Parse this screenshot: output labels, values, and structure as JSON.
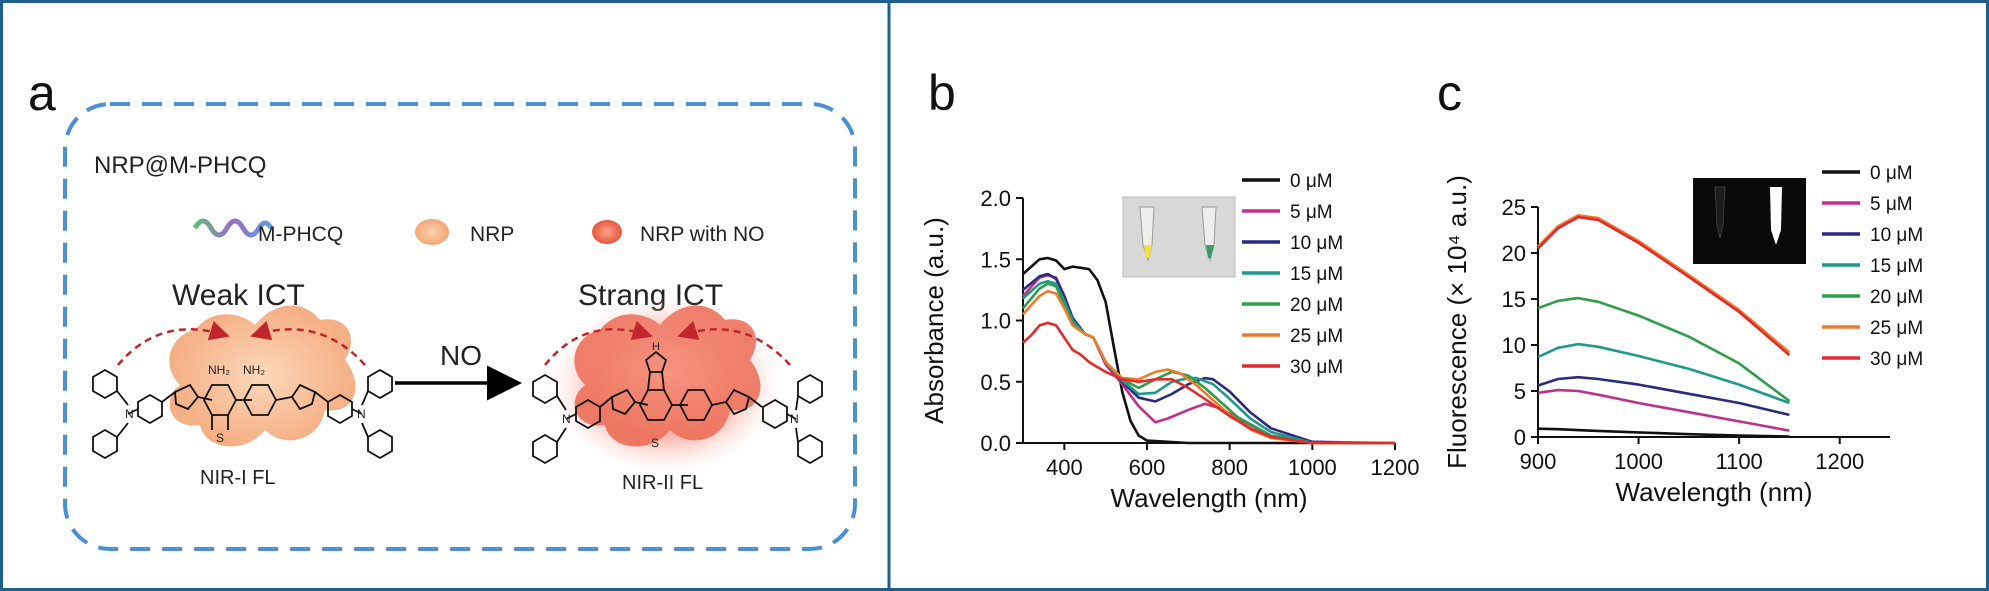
{
  "panel_a": {
    "letter": "a",
    "title": "NRP@M-PHCQ",
    "legend": {
      "mphcq": "M-PHCQ",
      "nrp": "NRP",
      "nrp_no": "NRP with NO"
    },
    "left_label": "Weak ICT",
    "right_label": "Strang ICT",
    "arrow_label": "NO",
    "left_caption": "NIR-I FL",
    "right_caption": "NIR-II FL",
    "atoms": {
      "nh2": "NH₂",
      "n": "N",
      "s": "S",
      "nh": "H"
    }
  },
  "panel_b": {
    "letter": "b"
  },
  "panel_c": {
    "letter": "c"
  },
  "colors": {
    "border": "#1f5f8b",
    "dashed": "#4a90d2",
    "s0": "#111111",
    "s5": "#c0308a",
    "s10": "#2b2a83",
    "s15": "#1f9a8a",
    "s20": "#2e9e49",
    "s25": "#f07b2b",
    "s30": "#e22b2b"
  },
  "chart_data": [
    {
      "type": "line",
      "xlabel": "Wavelength (nm)",
      "ylabel": "Absorbance (a.u.)",
      "xlim": [
        300,
        1200
      ],
      "ylim": [
        0,
        2.0
      ],
      "xticks": [
        "400",
        "600",
        "800",
        "1000",
        "1200"
      ],
      "yticks": [
        "0.0",
        "0.5",
        "1.0",
        "1.5",
        "2.0"
      ],
      "legend_position": "top-right",
      "series": [
        {
          "name": "0 μM",
          "x": [
            300,
            340,
            360,
            380,
            400,
            420,
            440,
            460,
            480,
            500,
            520,
            540,
            560,
            580,
            600,
            650,
            700,
            800,
            1000,
            1200
          ],
          "y": [
            1.38,
            1.5,
            1.51,
            1.49,
            1.42,
            1.44,
            1.43,
            1.42,
            1.33,
            1.15,
            0.78,
            0.42,
            0.18,
            0.06,
            0.02,
            0.01,
            0.0,
            0.0,
            0.0,
            0.0
          ]
        },
        {
          "name": "5 μM",
          "x": [
            300,
            340,
            360,
            380,
            400,
            420,
            450,
            470,
            500,
            540,
            580,
            620,
            650,
            700,
            740,
            780,
            820,
            900,
            1000,
            1200
          ],
          "y": [
            1.2,
            1.35,
            1.37,
            1.35,
            1.2,
            1.02,
            0.89,
            0.86,
            0.64,
            0.48,
            0.3,
            0.17,
            0.2,
            0.27,
            0.32,
            0.28,
            0.2,
            0.06,
            0.01,
            0.0
          ]
        },
        {
          "name": "10 μM",
          "x": [
            300,
            340,
            360,
            380,
            400,
            420,
            450,
            470,
            500,
            540,
            580,
            620,
            660,
            700,
            740,
            760,
            800,
            850,
            900,
            1000,
            1100,
            1200
          ],
          "y": [
            1.25,
            1.36,
            1.38,
            1.34,
            1.2,
            1.02,
            0.89,
            0.86,
            0.66,
            0.5,
            0.37,
            0.34,
            0.4,
            0.48,
            0.53,
            0.52,
            0.42,
            0.25,
            0.12,
            0.01,
            0.0,
            0.0
          ]
        },
        {
          "name": "15 μM",
          "x": [
            300,
            340,
            360,
            380,
            400,
            420,
            450,
            470,
            500,
            540,
            580,
            620,
            660,
            700,
            720,
            760,
            800,
            850,
            900,
            1000,
            1200
          ],
          "y": [
            1.18,
            1.3,
            1.32,
            1.3,
            1.16,
            1.0,
            0.89,
            0.86,
            0.66,
            0.51,
            0.4,
            0.41,
            0.5,
            0.53,
            0.53,
            0.48,
            0.36,
            0.2,
            0.09,
            0.0,
            0.0
          ]
        },
        {
          "name": "20 μM",
          "x": [
            300,
            340,
            360,
            380,
            400,
            420,
            450,
            470,
            500,
            540,
            580,
            620,
            660,
            700,
            740,
            780,
            820,
            900,
            1000,
            1200
          ],
          "y": [
            1.1,
            1.26,
            1.3,
            1.28,
            1.12,
            0.97,
            0.89,
            0.86,
            0.66,
            0.52,
            0.45,
            0.52,
            0.58,
            0.55,
            0.45,
            0.33,
            0.21,
            0.06,
            0.0,
            0.0
          ]
        },
        {
          "name": "25 μM",
          "x": [
            300,
            340,
            360,
            380,
            400,
            420,
            450,
            470,
            500,
            540,
            580,
            620,
            650,
            680,
            720,
            760,
            800,
            850,
            900,
            1000,
            1200
          ],
          "y": [
            1.05,
            1.2,
            1.24,
            1.22,
            1.1,
            0.96,
            0.89,
            0.86,
            0.66,
            0.53,
            0.52,
            0.58,
            0.6,
            0.57,
            0.47,
            0.35,
            0.23,
            0.11,
            0.04,
            0.0,
            0.0
          ]
        },
        {
          "name": "30 μM",
          "x": [
            300,
            320,
            340,
            360,
            380,
            400,
            420,
            440,
            460,
            480,
            500,
            540,
            580,
            620,
            660,
            700,
            740,
            800,
            850,
            900,
            1000,
            1200
          ],
          "y": [
            0.82,
            0.88,
            0.96,
            0.98,
            0.96,
            0.86,
            0.76,
            0.72,
            0.66,
            0.62,
            0.58,
            0.52,
            0.5,
            0.52,
            0.52,
            0.45,
            0.36,
            0.22,
            0.12,
            0.05,
            0.0,
            0.0
          ]
        }
      ]
    },
    {
      "type": "line",
      "xlabel": "Wavelength (nm)",
      "ylabel": "Fluorescence (× 10⁴ a.u.)",
      "xlim": [
        900,
        1250
      ],
      "ylim": [
        0,
        25
      ],
      "xticks": [
        "900",
        "1000",
        "1100",
        "1200"
      ],
      "yticks": [
        "0",
        "5",
        "10",
        "15",
        "20",
        "25"
      ],
      "legend_position": "top-right",
      "series": [
        {
          "name": "0 μM",
          "x": [
            900,
            920,
            950,
            1000,
            1050,
            1100,
            1150
          ],
          "y": [
            0.9,
            0.85,
            0.7,
            0.5,
            0.3,
            0.15,
            0.05
          ]
        },
        {
          "name": "5 μM",
          "x": [
            900,
            920,
            940,
            960,
            1000,
            1050,
            1100,
            1150
          ],
          "y": [
            4.8,
            5.1,
            5.0,
            4.6,
            3.7,
            2.7,
            1.7,
            0.7
          ]
        },
        {
          "name": "10 μM",
          "x": [
            900,
            920,
            940,
            960,
            1000,
            1050,
            1100,
            1150
          ],
          "y": [
            5.6,
            6.3,
            6.5,
            6.3,
            5.7,
            4.7,
            3.7,
            2.4
          ]
        },
        {
          "name": "15 μM",
          "x": [
            900,
            920,
            940,
            960,
            1000,
            1050,
            1100,
            1150
          ],
          "y": [
            8.7,
            9.7,
            10.1,
            9.8,
            8.8,
            7.4,
            5.7,
            3.7
          ]
        },
        {
          "name": "20 μM",
          "x": [
            900,
            920,
            940,
            960,
            1000,
            1050,
            1100,
            1150
          ],
          "y": [
            14.0,
            14.8,
            15.1,
            14.7,
            13.2,
            10.9,
            8.0,
            3.9
          ]
        },
        {
          "name": "25 μM",
          "x": [
            900,
            920,
            940,
            960,
            1000,
            1050,
            1100,
            1150
          ],
          "y": [
            20.7,
            22.9,
            24.1,
            23.8,
            21.3,
            17.6,
            13.8,
            9.2
          ]
        },
        {
          "name": "30 μM",
          "x": [
            900,
            920,
            940,
            960,
            1000,
            1050,
            1100,
            1150
          ],
          "y": [
            20.5,
            22.7,
            23.9,
            23.6,
            21.1,
            17.4,
            13.6,
            8.9
          ]
        }
      ]
    }
  ]
}
